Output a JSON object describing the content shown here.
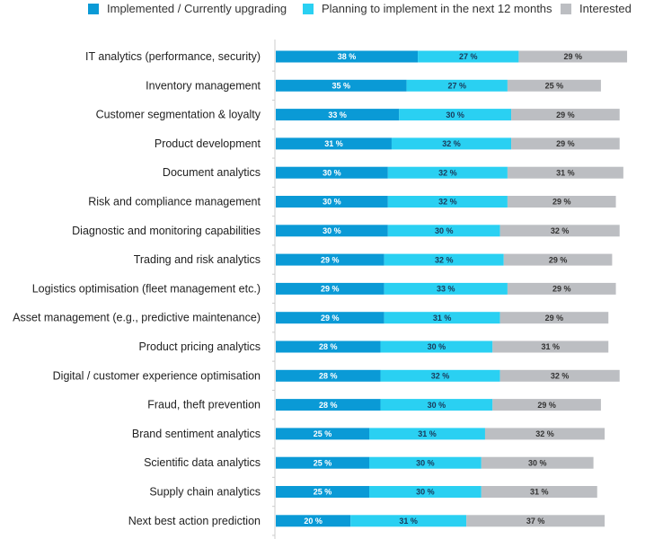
{
  "chart_data": {
    "type": "bar",
    "orientation": "horizontal",
    "stacked": true,
    "title": "",
    "xlabel": "",
    "ylabel": "",
    "legend_position": "top",
    "grid": false,
    "value_suffix": " %",
    "categories": [
      "IT analytics (performance, security)",
      "Inventory management",
      "Customer segmentation & loyalty",
      "Product development",
      "Document analytics",
      "Risk and compliance management",
      "Diagnostic and monitoring capabilities",
      "Trading and risk analytics",
      "Logistics optimisation (fleet management etc.)",
      "Asset management (e.g., predictive maintenance)",
      "Product pricing analytics",
      "Digital / customer experience optimisation",
      "Fraud, theft prevention",
      "Brand sentiment analytics",
      "Scientific data analytics",
      "Supply chain analytics",
      "Next best action prediction"
    ],
    "series": [
      {
        "name": "Implemented / Currently upgrading",
        "color": "#0a9ad6",
        "label_color": "#ffffff",
        "values": [
          38,
          35,
          33,
          31,
          30,
          30,
          30,
          29,
          29,
          29,
          28,
          28,
          28,
          25,
          25,
          25,
          20
        ]
      },
      {
        "name": "Planning to implement in the next 12 months",
        "color": "#2ad0f2",
        "label_color": "#1a3a5a",
        "values": [
          27,
          27,
          30,
          32,
          32,
          32,
          30,
          32,
          33,
          31,
          30,
          32,
          30,
          31,
          30,
          30,
          31
        ]
      },
      {
        "name": "Interested",
        "color": "#bcbec2",
        "label_color": "#333333",
        "values": [
          29,
          25,
          29,
          29,
          31,
          29,
          32,
          29,
          29,
          29,
          31,
          32,
          29,
          32,
          30,
          31,
          37
        ]
      }
    ]
  }
}
